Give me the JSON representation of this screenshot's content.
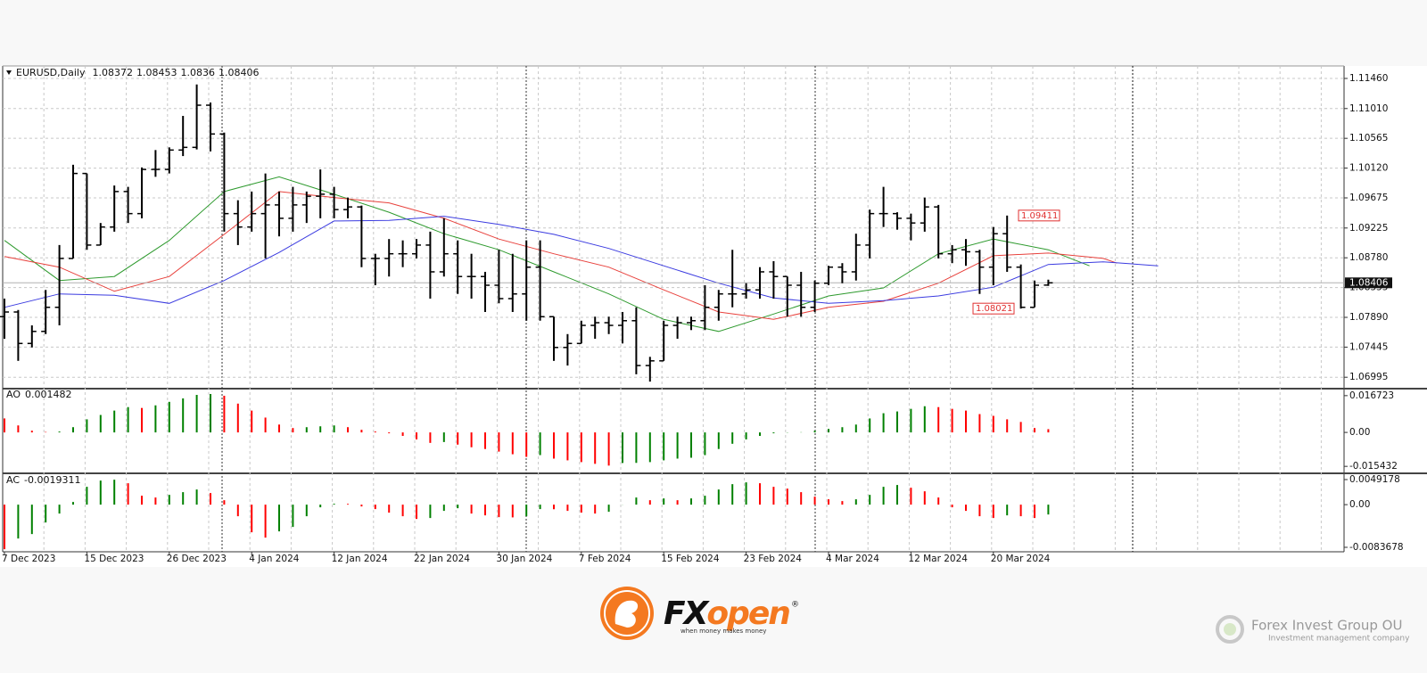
{
  "chart_data": [
    {
      "type": "ohlc",
      "title": "EURUSD,Daily",
      "categories": [
        "7 Dec 2023",
        null,
        null,
        null,
        null,
        null,
        "15 Dec 2023",
        null,
        null,
        null,
        null,
        null,
        "26 Dec 2023",
        null,
        null,
        null,
        null,
        null,
        "4 Jan 2024",
        null,
        null,
        null,
        null,
        null,
        "12 Jan 2024",
        null,
        null,
        null,
        null,
        null,
        "22 Jan 2024",
        null,
        null,
        null,
        null,
        null,
        "30 Jan 2024",
        null,
        null,
        null,
        null,
        null,
        "7 Feb 2024",
        null,
        null,
        null,
        null,
        null,
        "15 Feb 2024",
        null,
        null,
        null,
        null,
        null,
        "23 Feb 2024",
        null,
        null,
        null,
        null,
        null,
        "4 Mar 2024",
        null,
        null,
        null,
        null,
        null,
        "12 Mar 2024",
        null,
        null,
        null,
        null,
        null,
        "20 Mar 2024",
        null,
        null,
        null,
        null
      ],
      "open": [
        1.079,
        1.0797,
        1.075,
        1.0768,
        1.0804,
        1.0877,
        1.1004,
        1.0897,
        1.0924,
        1.0977,
        1.0944,
        1.101,
        1.101,
        1.1039,
        1.1043,
        1.1106,
        1.1063,
        1.0944,
        1.0924,
        1.0944,
        1.0957,
        1.0937,
        1.0957,
        1.097,
        1.0973,
        1.095,
        1.0954,
        1.0877,
        1.0877,
        1.0884,
        1.0884,
        1.0897,
        1.0857,
        1.0884,
        1.085,
        1.085,
        1.0837,
        1.0817,
        1.0824,
        1.0864,
        1.079,
        1.0744,
        1.075,
        1.0777,
        1.0781,
        1.0777,
        1.0784,
        1.0717,
        1.0724,
        1.0777,
        1.0781,
        1.0784,
        1.0804,
        1.0824,
        1.0824,
        1.083,
        1.0857,
        1.085,
        1.0837,
        1.0804,
        1.084,
        1.0864,
        1.0857,
        1.0897,
        1.0944,
        1.0944,
        1.0937,
        1.093,
        1.0954,
        1.0884,
        1.089,
        1.0887,
        1.0864,
        1.0914,
        1.0864,
        1.0804,
        1.08372
      ],
      "high": [
        1.0817,
        1.08,
        1.0777,
        1.083,
        1.0897,
        1.1017,
        1.1004,
        1.093,
        1.0986,
        1.0984,
        1.1013,
        1.1039,
        1.1043,
        1.109,
        1.1137,
        1.111,
        1.1065,
        1.0964,
        1.0977,
        1.1004,
        1.0977,
        1.0984,
        1.0977,
        1.101,
        1.0984,
        1.0968,
        1.0956,
        1.0884,
        1.0906,
        1.0904,
        1.0906,
        1.0917,
        1.0937,
        1.0904,
        1.0884,
        1.0857,
        1.089,
        1.0884,
        1.0904,
        1.0904,
        1.079,
        1.0764,
        1.0784,
        1.079,
        1.079,
        1.0797,
        1.0804,
        1.073,
        1.0784,
        1.079,
        1.079,
        1.0837,
        1.083,
        1.089,
        1.084,
        1.0864,
        1.0873,
        1.085,
        1.0857,
        1.0844,
        1.0866,
        1.087,
        1.0914,
        1.095,
        1.0984,
        1.0946,
        1.0944,
        1.0968,
        1.0957,
        1.0897,
        1.0906,
        1.089,
        1.0924,
        1.09411,
        1.0868,
        1.0844,
        1.08453
      ],
      "low": [
        1.0757,
        1.0724,
        1.0744,
        1.0764,
        1.0777,
        1.0877,
        1.089,
        1.0897,
        1.0917,
        1.093,
        1.0937,
        1.0999,
        1.1004,
        1.103,
        1.104,
        1.1037,
        1.0917,
        1.0897,
        1.0917,
        1.0877,
        1.091,
        1.0917,
        1.093,
        1.0937,
        1.0937,
        1.0937,
        1.0864,
        1.0837,
        1.085,
        1.0864,
        1.0877,
        1.0817,
        1.085,
        1.0824,
        1.0817,
        1.0797,
        1.081,
        1.0797,
        1.0784,
        1.0784,
        1.0724,
        1.0717,
        1.075,
        1.0757,
        1.0764,
        1.075,
        1.0704,
        1.0693,
        1.0724,
        1.0757,
        1.077,
        1.077,
        1.0784,
        1.0804,
        1.0817,
        1.0817,
        1.0817,
        1.079,
        1.079,
        1.0797,
        1.0837,
        1.084,
        1.0844,
        1.0877,
        1.0924,
        1.092,
        1.0904,
        1.0917,
        1.0877,
        1.087,
        1.0866,
        1.0824,
        1.0837,
        1.0857,
        1.08021,
        1.0804,
        1.0836
      ],
      "close": [
        1.0797,
        1.075,
        1.0768,
        1.0804,
        1.0877,
        1.1004,
        1.0897,
        1.0924,
        1.0977,
        1.0944,
        1.101,
        1.101,
        1.1039,
        1.1043,
        1.1106,
        1.1063,
        1.0944,
        1.0924,
        1.0944,
        1.0957,
        1.0937,
        1.0957,
        1.097,
        1.0973,
        1.095,
        1.0954,
        1.0877,
        1.0877,
        1.0884,
        1.0884,
        1.0897,
        1.0857,
        1.0884,
        1.085,
        1.085,
        1.0837,
        1.0817,
        1.0824,
        1.0864,
        1.079,
        1.0744,
        1.075,
        1.0777,
        1.0781,
        1.0777,
        1.0784,
        1.0717,
        1.0724,
        1.0777,
        1.0781,
        1.0784,
        1.0804,
        1.0824,
        1.0824,
        1.083,
        1.0857,
        1.085,
        1.0837,
        1.0804,
        1.084,
        1.0864,
        1.0857,
        1.0897,
        1.0944,
        1.0944,
        1.0937,
        1.093,
        1.0954,
        1.0884,
        1.089,
        1.0887,
        1.0864,
        1.0914,
        1.0864,
        1.0804,
        1.0837,
        1.08406
      ],
      "color": "#000000",
      "ylim": [
        1.06838,
        1.11633
      ],
      "yticks": [
        {
          "value": 1.1146,
          "label": "1.11460"
        },
        {
          "value": 1.1101,
          "label": "1.11010"
        },
        1.10565,
        {
          "value": 1.1012,
          "label": "1.10120"
        },
        1.09675,
        1.09225,
        {
          "value": 1.0878,
          "label": "1.08780"
        },
        1.08335,
        {
          "value": 1.0789,
          "label": "1.07890"
        },
        1.07445,
        1.06995
      ],
      "grid": true,
      "price_line_color": "#b0b0b0",
      "moving_averages": [
        {
          "color": "#2e9a2e",
          "x": [
            0,
            4,
            8,
            12,
            16,
            20,
            24,
            28,
            32,
            36,
            40,
            44,
            48,
            52,
            56,
            60,
            64,
            68,
            72,
            76,
            79
          ],
          "values": [
            1.0904,
            1.0844,
            1.085,
            1.0904,
            1.0977,
            1.0999,
            1.0973,
            1.0946,
            1.0914,
            1.089,
            1.0857,
            1.0824,
            1.0786,
            1.0768,
            1.0794,
            1.0821,
            1.0833,
            1.0884,
            1.0906,
            1.089,
            1.0866
          ]
        },
        {
          "color": "#e8413c",
          "x": [
            0,
            4,
            8,
            12,
            16,
            20,
            24,
            28,
            32,
            36,
            40,
            44,
            48,
            52,
            56,
            60,
            64,
            68,
            72,
            76,
            80,
            81
          ],
          "values": [
            1.088,
            1.0864,
            1.0828,
            1.085,
            1.0913,
            1.0977,
            1.0968,
            1.096,
            1.0937,
            1.0906,
            1.0884,
            1.0864,
            1.083,
            1.0797,
            1.0786,
            1.0804,
            1.0813,
            1.084,
            1.0881,
            1.0885,
            1.0877,
            1.087
          ]
        },
        {
          "color": "#3b3be0",
          "x": [
            0,
            4,
            8,
            12,
            16,
            20,
            24,
            28,
            32,
            36,
            40,
            44,
            48,
            52,
            56,
            60,
            64,
            68,
            72,
            76,
            80,
            84
          ],
          "values": [
            1.0804,
            1.0824,
            1.0822,
            1.081,
            1.0844,
            1.0886,
            1.0933,
            1.0934,
            1.094,
            1.0928,
            1.0913,
            1.0892,
            1.0866,
            1.084,
            1.0818,
            1.081,
            1.0814,
            1.0821,
            1.0834,
            1.0868,
            1.0872,
            1.0866
          ]
        }
      ],
      "annotations": [
        {
          "value": 1.09411,
          "color": "#e03030"
        },
        {
          "value": 1.08021,
          "color": "#e03030"
        }
      ]
    },
    {
      "type": "bar",
      "title": "AO",
      "values": [
        0.00635,
        0.00318,
        0.00079,
        0.0002,
        0.0004,
        0.00238,
        0.00596,
        0.00794,
        0.00993,
        0.01151,
        0.01112,
        0.01231,
        0.0139,
        0.01548,
        0.01707,
        0.01747,
        0.01667,
        0.0131,
        0.00993,
        0.00675,
        0.00357,
        0.00199,
        0.00238,
        0.00278,
        0.00318,
        0.00238,
        0.00119,
        0.0004,
        -0.0004,
        -0.00159,
        -0.00318,
        -0.00476,
        -0.00437,
        -0.00556,
        -0.00675,
        -0.00754,
        -0.00873,
        -0.00993,
        -0.01112,
        -0.01032,
        -0.01191,
        -0.0127,
        -0.0135,
        -0.01429,
        -0.01509,
        -0.0139,
        -0.01385,
        -0.0135,
        -0.0127,
        -0.01191,
        -0.01151,
        -0.01032,
        -0.00754,
        -0.00516,
        -0.00318,
        -0.00159,
        -0.0004,
        -0.0001,
        0.0001,
        0.00079,
        0.00159,
        0.00238,
        0.00357,
        0.00635,
        0.00873,
        0.00953,
        0.01072,
        0.01191,
        0.01151,
        0.01072,
        0.00993,
        0.00834,
        0.00754,
        0.00596,
        0.00476,
        0.00199,
        0.001482
      ],
      "up_color": "#008000",
      "down_color": "#ff0000",
      "ylim": [
        -0.0182,
        0.0195
      ],
      "yticks": [
        0.016723,
        {
          "value": 0,
          "label": "0.00"
        },
        -0.015432
      ]
    },
    {
      "type": "bar",
      "title": "AC",
      "values": [
        -0.00874,
        -0.00664,
        -0.00577,
        -0.0035,
        -0.00175,
        0.00052,
        0.0035,
        0.00472,
        0.00489,
        0.0042,
        0.00175,
        0.0014,
        0.00192,
        0.00245,
        0.00297,
        0.00227,
        0.00087,
        -0.00227,
        -0.00542,
        -0.00647,
        -0.00524,
        -0.00437,
        -0.00227,
        -0.00052,
        0.00017,
        0.00015,
        -0.00035,
        -0.00087,
        -0.00157,
        -0.00227,
        -0.0028,
        -0.00262,
        -0.00122,
        -0.0007,
        -0.00175,
        -0.0021,
        -0.00245,
        -0.0025,
        -0.00227,
        -0.00087,
        -0.0009,
        -0.00122,
        -0.00157,
        -0.00175,
        -0.0014,
        2e-05,
        0.0014,
        0.00087,
        0.00122,
        0.00087,
        0.00122,
        0.00175,
        0.00297,
        0.00402,
        0.00437,
        0.0042,
        0.0035,
        0.00315,
        0.00245,
        0.00157,
        0.00105,
        0.0007,
        0.00105,
        0.00192,
        0.0035,
        0.00385,
        0.00332,
        0.00262,
        0.0014,
        -0.00052,
        -0.00122,
        -0.00227,
        -0.00262,
        -0.0021,
        -0.00227,
        -0.00262,
        -0.0019311
      ],
      "up_color": "#008000",
      "down_color": "#ff0000",
      "ylim": [
        -0.009067,
        0.005967
      ],
      "yticks": [
        0.0049178,
        {
          "value": 0,
          "label": "0.00"
        },
        -0.0083678
      ]
    }
  ],
  "footer": {
    "brand_a": "FX",
    "brand_b": "open",
    "mark": "®",
    "tagline": "when money makes money",
    "company": "Forex Invest Group OU",
    "company_tagline": "Investment management company"
  }
}
